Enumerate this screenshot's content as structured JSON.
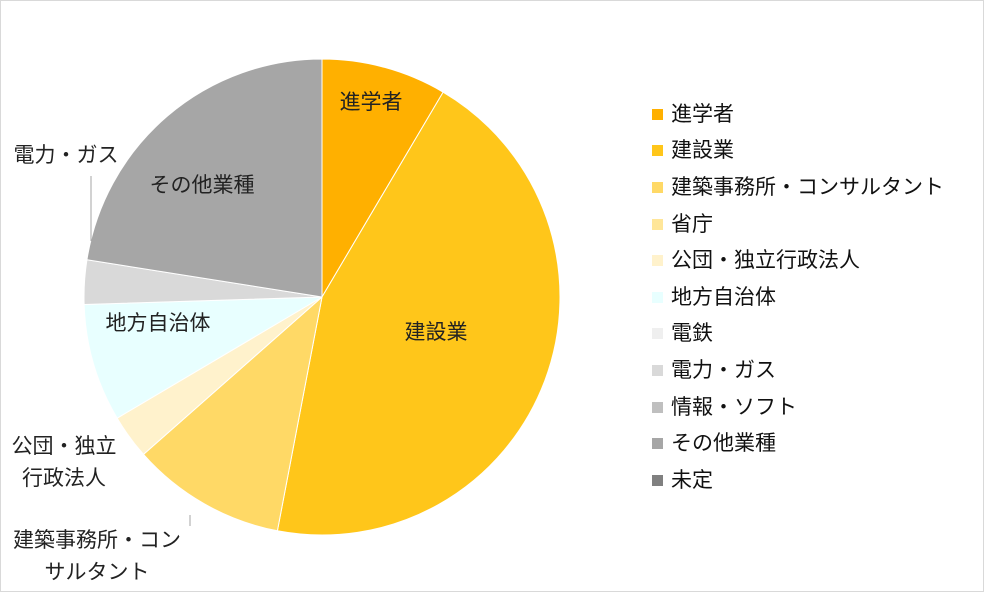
{
  "chart_data": {
    "type": "pie",
    "categories": [
      "進学者",
      "建設業",
      "建築事務所・コンサルタント",
      "省庁",
      "公団・独立行政法人",
      "地方自治体",
      "電鉄",
      "電力・ガス",
      "情報・ソフト",
      "その他業種",
      "未定"
    ],
    "values": [
      8.5,
      44.5,
      10.5,
      0,
      3.0,
      8.0,
      0,
      3.0,
      0,
      22.5,
      0
    ],
    "colors": [
      "#ffb000",
      "#ffc61a",
      "#ffd966",
      "#ffe699",
      "#fff2cc",
      "#e8ffff",
      "#efefef",
      "#d9d9d9",
      "#bfbfbf",
      "#a6a6a6",
      "#808080"
    ],
    "legend_position": "right",
    "labels_in_chart": [
      {
        "category_index": 0,
        "lines": [
          "進学者"
        ]
      },
      {
        "category_index": 1,
        "lines": [
          "建設業"
        ]
      },
      {
        "category_index": 2,
        "lines": [
          "建築事務所・コン",
          "サルタント"
        ]
      },
      {
        "category_index": 4,
        "lines": [
          "公団・独立",
          "行政法人"
        ]
      },
      {
        "category_index": 5,
        "lines": [
          "地方自治体"
        ]
      },
      {
        "category_index": 7,
        "lines": [
          "電力・ガス"
        ]
      },
      {
        "category_index": 9,
        "lines": [
          "その他業種"
        ]
      }
    ]
  }
}
